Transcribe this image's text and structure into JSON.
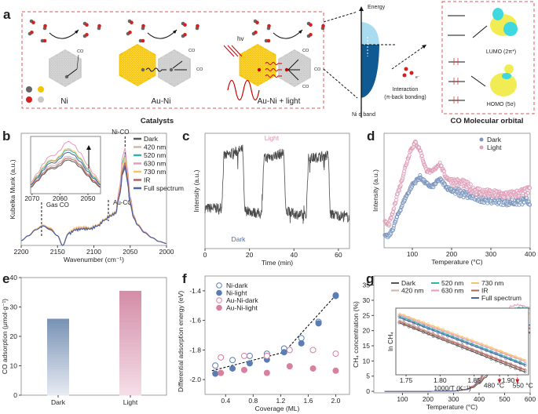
{
  "panel_a": {
    "label": "a",
    "catalysts": [
      "Ni",
      "Au-Ni",
      "Au-Ni + light"
    ],
    "caption": "Catalysts",
    "hv": "hv",
    "electron": "e⁻",
    "co": "CO",
    "atom_legend": [
      "C",
      "Au",
      "O",
      "Ni"
    ],
    "energy": "Energy",
    "dband": "Ni d band",
    "interaction": [
      "Interaction",
      "(π-back bonding)"
    ],
    "orbital_box_title": "CO Molecular orbital",
    "lumo": "LUMO (2π*)",
    "homo": "HOMO (5σ)",
    "colors": {
      "au": "#f5c400",
      "ni": "#c8c8c8",
      "c": "#666666",
      "o": "#d42020",
      "dband_top": "#a9dcf0",
      "dband_bottom": "#0f5a92",
      "box": "#e05a5a"
    }
  },
  "chart_data": [
    {
      "panel": "b",
      "type": "line",
      "xlabel": "Wavenumber (cm⁻¹)",
      "ylabel": "Kubelka Munk (a.u.)",
      "xlim": [
        2200,
        2000
      ],
      "ylim": [
        0,
        1.15
      ],
      "xticks": [
        "2200",
        "2150",
        "2100",
        "2050",
        "2000"
      ],
      "yticks": [],
      "x": [
        2200,
        2190,
        2180,
        2170,
        2160,
        2150,
        2143,
        2135,
        2125,
        2115,
        2105,
        2095,
        2085,
        2078,
        2070,
        2065,
        2060,
        2057,
        2054,
        2050,
        2045,
        2040,
        2030,
        2020,
        2010,
        2000
      ],
      "series": [
        {
          "name": "Dark",
          "color": "#5a5a5a",
          "values": [
            0.05,
            0.1,
            0.16,
            0.2,
            0.17,
            0.1,
            0.0,
            0.12,
            0.16,
            0.17,
            0.17,
            0.2,
            0.26,
            0.3,
            0.33,
            0.5,
            0.74,
            0.8,
            0.66,
            0.42,
            0.28,
            0.21,
            0.13,
            0.08,
            0.04,
            0.02
          ]
        },
        {
          "name": "420 nm",
          "color": "#cdb8ad",
          "values": [
            0.05,
            0.1,
            0.16,
            0.21,
            0.17,
            0.1,
            0.0,
            0.12,
            0.17,
            0.18,
            0.17,
            0.2,
            0.26,
            0.3,
            0.33,
            0.52,
            0.8,
            0.88,
            0.72,
            0.45,
            0.29,
            0.21,
            0.13,
            0.08,
            0.04,
            0.02
          ]
        },
        {
          "name": "520 nm",
          "color": "#2fb5a8",
          "values": [
            0.05,
            0.1,
            0.16,
            0.2,
            0.17,
            0.1,
            0.0,
            0.12,
            0.16,
            0.17,
            0.17,
            0.2,
            0.27,
            0.31,
            0.34,
            0.55,
            0.86,
            0.93,
            0.76,
            0.47,
            0.3,
            0.22,
            0.13,
            0.08,
            0.04,
            0.02
          ]
        },
        {
          "name": "630 nm",
          "color": "#e49bbd",
          "values": [
            0.05,
            0.1,
            0.16,
            0.21,
            0.17,
            0.1,
            0.0,
            0.12,
            0.17,
            0.18,
            0.18,
            0.21,
            0.27,
            0.31,
            0.34,
            0.58,
            0.92,
            1.0,
            0.8,
            0.5,
            0.31,
            0.22,
            0.14,
            0.08,
            0.04,
            0.02
          ]
        },
        {
          "name": "730 nm",
          "color": "#f6c46d",
          "values": [
            0.05,
            0.1,
            0.17,
            0.21,
            0.18,
            0.1,
            0.0,
            0.13,
            0.18,
            0.19,
            0.18,
            0.21,
            0.27,
            0.31,
            0.34,
            0.54,
            0.84,
            0.91,
            0.74,
            0.46,
            0.3,
            0.22,
            0.13,
            0.08,
            0.04,
            0.02
          ]
        },
        {
          "name": "IR",
          "color": "#b4635b",
          "values": [
            0.05,
            0.1,
            0.16,
            0.2,
            0.17,
            0.1,
            0.0,
            0.12,
            0.16,
            0.17,
            0.17,
            0.2,
            0.26,
            0.3,
            0.33,
            0.52,
            0.78,
            0.85,
            0.7,
            0.44,
            0.29,
            0.21,
            0.13,
            0.08,
            0.04,
            0.02
          ]
        },
        {
          "name": "Full spectrum",
          "color": "#4a62a8",
          "values": [
            0.05,
            0.1,
            0.16,
            0.2,
            0.16,
            0.1,
            0.0,
            0.12,
            0.16,
            0.17,
            0.17,
            0.2,
            0.26,
            0.3,
            0.33,
            0.5,
            0.75,
            0.82,
            0.68,
            0.43,
            0.28,
            0.21,
            0.13,
            0.08,
            0.04,
            0.02
          ]
        }
      ],
      "annotations": [
        {
          "text": "Gas CO",
          "x": 2172
        },
        {
          "text": "Au-CO",
          "x": 2080
        },
        {
          "text": "Ni-CO",
          "x": 2057
        }
      ],
      "inset": {
        "xlim": [
          2070.5,
          2045.5
        ],
        "ylim": [
          0,
          0.9
        ],
        "xticks": [
          "2070",
          "2060",
          "2050"
        ],
        "x": [
          2070.5,
          2068,
          2066,
          2064,
          2063,
          2062,
          2060,
          2058,
          2057,
          2055,
          2053,
          2050,
          2048,
          2045.5
        ],
        "series": [
          {
            "name": "Dark",
            "values": [
              0.1,
              0.2,
              0.3,
              0.38,
              0.4,
              0.39,
              0.44,
              0.52,
              0.53,
              0.5,
              0.42,
              0.28,
              0.18,
              0.1
            ]
          },
          {
            "name": "420 nm",
            "values": [
              0.12,
              0.23,
              0.34,
              0.43,
              0.45,
              0.44,
              0.5,
              0.58,
              0.59,
              0.56,
              0.47,
              0.32,
              0.21,
              0.12
            ]
          },
          {
            "name": "520 nm",
            "values": [
              0.15,
              0.27,
              0.4,
              0.5,
              0.52,
              0.51,
              0.58,
              0.68,
              0.69,
              0.65,
              0.55,
              0.38,
              0.26,
              0.15
            ]
          },
          {
            "name": "630 nm",
            "values": [
              0.18,
              0.32,
              0.47,
              0.58,
              0.6,
              0.6,
              0.68,
              0.8,
              0.82,
              0.77,
              0.65,
              0.45,
              0.31,
              0.18
            ]
          },
          {
            "name": "730 nm",
            "values": [
              0.16,
              0.29,
              0.42,
              0.52,
              0.53,
              0.52,
              0.6,
              0.7,
              0.71,
              0.67,
              0.57,
              0.4,
              0.28,
              0.17
            ]
          },
          {
            "name": "IR",
            "values": [
              0.11,
              0.21,
              0.32,
              0.4,
              0.42,
              0.41,
              0.47,
              0.55,
              0.56,
              0.53,
              0.45,
              0.3,
              0.2,
              0.11
            ]
          },
          {
            "name": "Full spectrum",
            "values": [
              0.14,
              0.25,
              0.37,
              0.47,
              0.49,
              0.48,
              0.55,
              0.64,
              0.65,
              0.61,
              0.51,
              0.35,
              0.24,
              0.14
            ]
          }
        ]
      },
      "legend": "right"
    },
    {
      "panel": "c",
      "type": "line",
      "xlabel": "Time (min)",
      "ylabel": "Intensity (a.u.)",
      "xlim": [
        0,
        65
      ],
      "ylim": [
        0,
        1
      ],
      "xticks": [
        "0",
        "20",
        "40",
        "60"
      ],
      "yticks": [],
      "x": [
        0,
        7.5,
        8.5,
        17,
        17.8,
        25.5,
        26.5,
        35.5,
        36.3,
        45.5,
        46.5,
        55.5,
        56.3,
        65
      ],
      "y": [
        0.35,
        0.35,
        0.8,
        0.86,
        0.33,
        0.3,
        0.78,
        0.83,
        0.32,
        0.28,
        0.78,
        0.81,
        0.3,
        0.27
      ],
      "color": "#4a4a4a",
      "annotations": [
        {
          "text": "Light",
          "x": 30,
          "y": 0.94,
          "color": "#e08fb0"
        },
        {
          "text": "Dark",
          "x": 15,
          "y": 0.06,
          "color": "#4e6ea8"
        }
      ]
    },
    {
      "panel": "d",
      "type": "scatter",
      "xlabel": "Temperature (°C)",
      "ylabel": "Intensity (a.u.)",
      "xlim": [
        28,
        400
      ],
      "ylim": [
        0,
        1
      ],
      "xticks": [
        "100",
        "200",
        "300",
        "400"
      ],
      "yticks": [],
      "series": [
        {
          "name": "Dark",
          "color": "#7b95bd",
          "x": [
            30,
            40,
            50,
            60,
            80,
            100,
            120,
            135,
            150,
            170,
            190,
            220,
            260,
            300,
            350,
            400
          ],
          "y": [
            0.1,
            0.1,
            0.16,
            0.26,
            0.42,
            0.55,
            0.62,
            0.56,
            0.53,
            0.6,
            0.52,
            0.48,
            0.44,
            0.42,
            0.4,
            0.41
          ]
        },
        {
          "name": "Light",
          "color": "#de9fb8",
          "x": [
            30,
            40,
            50,
            60,
            70,
            80,
            95,
            108,
            120,
            135,
            150,
            170,
            185,
            200,
            230,
            260,
            300,
            350,
            400
          ],
          "y": [
            0.22,
            0.2,
            0.3,
            0.45,
            0.55,
            0.68,
            0.85,
            0.92,
            0.85,
            0.68,
            0.66,
            0.74,
            0.62,
            0.58,
            0.56,
            0.5,
            0.47,
            0.46,
            0.5
          ]
        }
      ],
      "legend": "top-right"
    },
    {
      "panel": "e",
      "type": "bar",
      "xlabel": "",
      "ylabel": "CO adsorption (μmol·g⁻¹)",
      "categories": [
        "Dark",
        "Light"
      ],
      "values": [
        26,
        35.5
      ],
      "ylim": [
        0,
        40
      ],
      "yticks": [
        "0",
        "10",
        "20",
        "30",
        "40"
      ],
      "colors": [
        [
          "#7993b6",
          "#e6eaf1"
        ],
        [
          "#d48ea8",
          "#f4dde6"
        ]
      ]
    },
    {
      "panel": "f",
      "type": "scatter",
      "xlabel": "Coverage (ML)",
      "ylabel": "Differential adsorption energy (eV)",
      "xlim": [
        0.1,
        2.2
      ],
      "ylim": [
        -2.1,
        -1.3
      ],
      "xticks": [
        "0.4",
        "0.8",
        "1.2",
        "1.6",
        "2.0"
      ],
      "yticks": [
        "-1.4",
        "-1.6",
        "-1.8",
        "-2.0"
      ],
      "series": [
        {
          "name": "Ni-dark",
          "color": "#5b7db2",
          "filled": false,
          "x": [
            0.25,
            0.5,
            0.75,
            1.0,
            1.25,
            1.5,
            1.75,
            2.0
          ],
          "y": [
            -1.905,
            -1.868,
            -1.84,
            -1.825,
            -1.79,
            -1.72,
            -1.61,
            -1.43
          ]
        },
        {
          "name": "Ni-light",
          "color": "#5b7db2",
          "filled": true,
          "x": [
            0.25,
            0.5,
            0.75,
            1.0,
            1.25,
            1.5,
            1.75,
            2.0
          ],
          "y": [
            -1.96,
            -1.925,
            -1.89,
            -1.865,
            -1.815,
            -1.755,
            -1.62,
            -1.435
          ]
        },
        {
          "name": "Au-Ni-dark",
          "color": "#d8809f",
          "filled": false,
          "x": [
            0.33,
            0.67,
            1.0,
            1.33,
            1.67,
            2.0
          ],
          "y": [
            -1.85,
            -1.84,
            -1.84,
            -1.8,
            -1.8,
            -1.825
          ]
        },
        {
          "name": "Au-Ni-light",
          "color": "#d8809f",
          "filled": true,
          "x": [
            0.33,
            0.67,
            1.0,
            1.33,
            1.67,
            2.0
          ],
          "y": [
            -1.955,
            -1.935,
            -1.955,
            -1.91,
            -1.925,
            -1.94
          ]
        }
      ],
      "trend_line": {
        "x": [
          0.2,
          1.25,
          2.0
        ],
        "y": [
          -1.94,
          -1.815,
          -1.43
        ]
      },
      "legend": "top-left"
    },
    {
      "panel": "g",
      "type": "line",
      "xlabel": "Temperature (°C)",
      "ylabel": "CH₄ concentration (%)",
      "xlim": [
        -12,
        600
      ],
      "ylim": [
        -0.5,
        38
      ],
      "xticks": [
        "100",
        "200",
        "300",
        "400",
        "500",
        "600"
      ],
      "yticks": [
        "0",
        "5",
        "10",
        "15",
        "20",
        "25",
        "30",
        "35"
      ],
      "x": [
        30,
        100,
        200,
        300,
        350,
        375,
        400,
        425,
        450,
        475,
        500,
        525,
        550,
        575,
        600
      ],
      "series": [
        {
          "name": "Dark",
          "color": "#555555",
          "values": [
            0,
            0,
            0,
            0.1,
            0.5,
            1.2,
            2.5,
            4.5,
            7.5,
            11,
            14.5,
            16.5,
            18,
            19,
            19.5
          ]
        },
        {
          "name": "420 nm",
          "color": "#cdb3a6",
          "values": [
            0,
            0,
            0,
            0.1,
            0.6,
            1.4,
            3,
            6,
            10,
            14,
            18,
            20.5,
            21.5,
            21,
            21
          ]
        },
        {
          "name": "520 nm",
          "color": "#2fb5a8",
          "values": [
            0,
            0,
            0,
            0.15,
            0.7,
            1.7,
            4,
            8,
            14,
            20,
            25,
            27,
            27.5,
            27.5,
            27.5
          ]
        },
        {
          "name": "630 nm",
          "color": "#e49bbd",
          "values": [
            0,
            0,
            0,
            0.15,
            0.7,
            1.8,
            4.2,
            8.5,
            15,
            21,
            26,
            28,
            28.5,
            28,
            27.5
          ]
        },
        {
          "name": "730 nm",
          "color": "#f6c46d",
          "values": [
            0,
            0,
            0,
            0.15,
            0.7,
            1.6,
            3.8,
            7.5,
            13,
            18.5,
            23,
            25,
            26,
            26,
            25.5
          ]
        },
        {
          "name": "IR",
          "color": "#b4635b",
          "values": [
            0,
            0,
            0,
            0.1,
            0.5,
            1.2,
            2.7,
            5,
            8.5,
            12,
            16,
            18,
            19.5,
            20,
            20.5
          ]
        },
        {
          "name": "Full spectrum",
          "color": "#4a62a8",
          "values": [
            0,
            0,
            0,
            0.1,
            0.6,
            1.5,
            3.4,
            7,
            12,
            16.5,
            20.5,
            22.5,
            23.5,
            23,
            22
          ]
        }
      ],
      "annotations": [
        {
          "text": "480 °C",
          "x": 480,
          "y": 16.5
        },
        {
          "text": "550 °C",
          "x": 550,
          "y": 16.7
        }
      ],
      "inset": {
        "xlabel": "1000/T (K⁻¹)",
        "ylabel": "ln CH₄",
        "xlim": [
          1.735,
          1.93
        ],
        "ylim": [
          0,
          1
        ],
        "xticks": [
          "1.75",
          "1.80",
          "1.85",
          "1.90"
        ],
        "x": [
          1.74,
          1.925
        ],
        "series": [
          {
            "name": "Dark",
            "values": [
              0.78,
              0.04
            ]
          },
          {
            "name": "420 nm",
            "values": [
              0.82,
              0.08
            ]
          },
          {
            "name": "520 nm",
            "values": [
              0.88,
              0.16
            ]
          },
          {
            "name": "630 nm",
            "values": [
              0.9,
              0.2
            ]
          },
          {
            "name": "730 nm",
            "values": [
              0.92,
              0.22
            ]
          },
          {
            "name": "IR",
            "values": [
              0.8,
              0.07
            ]
          },
          {
            "name": "Full spectrum",
            "values": [
              0.86,
              0.14
            ]
          }
        ]
      },
      "legend": "top"
    }
  ]
}
